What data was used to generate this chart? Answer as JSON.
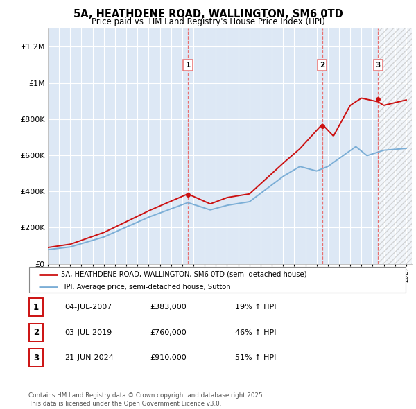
{
  "title": "5A, HEATHDENE ROAD, WALLINGTON, SM6 0TD",
  "subtitle": "Price paid vs. HM Land Registry's House Price Index (HPI)",
  "ylabel_ticks": [
    "£0",
    "£200K",
    "£400K",
    "£600K",
    "£800K",
    "£1M",
    "£1.2M"
  ],
  "ylim": [
    0,
    1300000
  ],
  "xlim_start": 1995.0,
  "xlim_end": 2027.5,
  "background_color": "#ffffff",
  "plot_bg_color": "#dde8f5",
  "grid_color": "#ffffff",
  "sale_dates": [
    2007.504,
    2019.504,
    2024.472
  ],
  "sale_prices": [
    383000,
    760000,
    910000
  ],
  "sale_labels": [
    "1",
    "2",
    "3"
  ],
  "vline_color": "#e87070",
  "red_line_color": "#cc1111",
  "blue_line_color": "#7baed6",
  "legend_red_label": "5A, HEATHDENE ROAD, WALLINGTON, SM6 0TD (semi-detached house)",
  "legend_blue_label": "HPI: Average price, semi-detached house, Sutton",
  "table_data": [
    [
      "1",
      "04-JUL-2007",
      "£383,000",
      "19% ↑ HPI"
    ],
    [
      "2",
      "03-JUL-2019",
      "£760,000",
      "46% ↑ HPI"
    ],
    [
      "3",
      "21-JUN-2024",
      "£910,000",
      "51% ↑ HPI"
    ]
  ],
  "footer": "Contains HM Land Registry data © Crown copyright and database right 2025.\nThis data is licensed under the Open Government Licence v3.0.",
  "hatch_start": 2024.472,
  "hatch_end": 2027.5
}
